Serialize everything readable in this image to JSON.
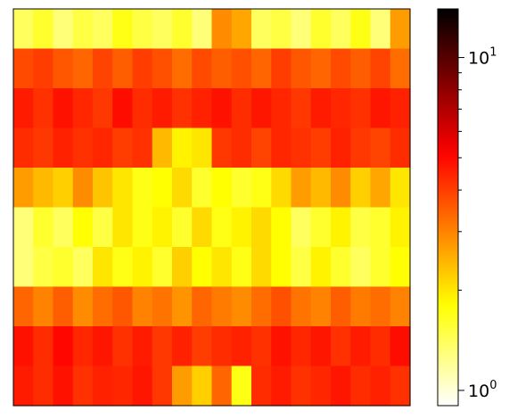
{
  "chart_data": {
    "type": "heatmap",
    "title": "",
    "xlabel": "",
    "ylabel": "",
    "colormap": "hot_r",
    "color_scale": "log",
    "colorbar": {
      "vmin": 0.9,
      "vmax": 14,
      "ticks": [
        {
          "value": 1,
          "base": "10",
          "exp": "0"
        },
        {
          "value": 10,
          "base": "10",
          "exp": "1"
        }
      ],
      "minor_ticks": [
        2,
        3,
        4,
        5,
        6,
        7,
        8,
        9
      ]
    },
    "n_rows": 10,
    "n_cols": 20,
    "rows": [
      [
        1.4,
        1.6,
        1.3,
        1.5,
        1.4,
        1.7,
        1.5,
        1.4,
        1.6,
        1.3,
        2.9,
        2.6,
        1.4,
        1.5,
        1.3,
        1.6,
        1.4,
        1.7,
        1.3,
        2.7
      ],
      [
        3.8,
        4.0,
        3.6,
        3.4,
        3.9,
        3.5,
        4.0,
        3.7,
        3.3,
        3.8,
        3.5,
        3.7,
        3.4,
        4.0,
        3.6,
        3.4,
        3.8,
        3.5,
        3.9,
        3.3
      ],
      [
        4.6,
        4.2,
        4.8,
        4.4,
        4.1,
        4.9,
        4.3,
        4.6,
        4.2,
        4.5,
        4.8,
        4.3,
        4.7,
        4.4,
        4.1,
        4.6,
        4.4,
        4.2,
        4.7,
        4.5
      ],
      [
        4.3,
        4.1,
        4.5,
        4.2,
        4.4,
        4.0,
        4.2,
        2.4,
        1.9,
        2.0,
        4.1,
        4.3,
        3.9,
        4.4,
        4.2,
        4.0,
        4.5,
        4.1,
        3.9,
        4.3
      ],
      [
        2.7,
        2.4,
        2.2,
        2.9,
        2.3,
        2.0,
        1.7,
        1.8,
        2.1,
        1.6,
        1.8,
        1.6,
        1.7,
        2.1,
        2.7,
        2.4,
        2.9,
        2.2,
        2.6,
        2.0
      ],
      [
        1.3,
        1.6,
        1.4,
        1.8,
        1.5,
        2.0,
        1.7,
        1.9,
        1.6,
        2.1,
        1.7,
        1.9,
        2.1,
        1.8,
        1.4,
        1.6,
        1.9,
        1.5,
        1.6,
        1.9
      ],
      [
        1.3,
        1.5,
        1.6,
        1.4,
        2.0,
        1.7,
        1.9,
        1.6,
        2.2,
        1.8,
        2.0,
        1.7,
        2.1,
        1.8,
        1.5,
        1.9,
        1.6,
        1.4,
        1.6,
        1.8
      ],
      [
        3.4,
        3.0,
        3.5,
        2.9,
        3.3,
        3.6,
        3.0,
        3.2,
        2.8,
        3.4,
        3.1,
        2.9,
        3.3,
        3.7,
        3.2,
        3.0,
        3.5,
        3.1,
        3.3,
        3.0
      ],
      [
        4.8,
        4.3,
        5.0,
        4.4,
        4.7,
        4.2,
        4.6,
        4.1,
        4.5,
        4.0,
        4.3,
        4.5,
        4.2,
        4.8,
        4.4,
        4.7,
        4.2,
        4.6,
        4.3,
        4.9
      ],
      [
        4.6,
        4.3,
        4.8,
        4.2,
        4.5,
        4.4,
        4.7,
        4.1,
        2.7,
        2.2,
        3.4,
        1.7,
        4.3,
        4.6,
        4.2,
        4.4,
        4.7,
        4.3,
        4.5,
        4.2
      ]
    ]
  }
}
